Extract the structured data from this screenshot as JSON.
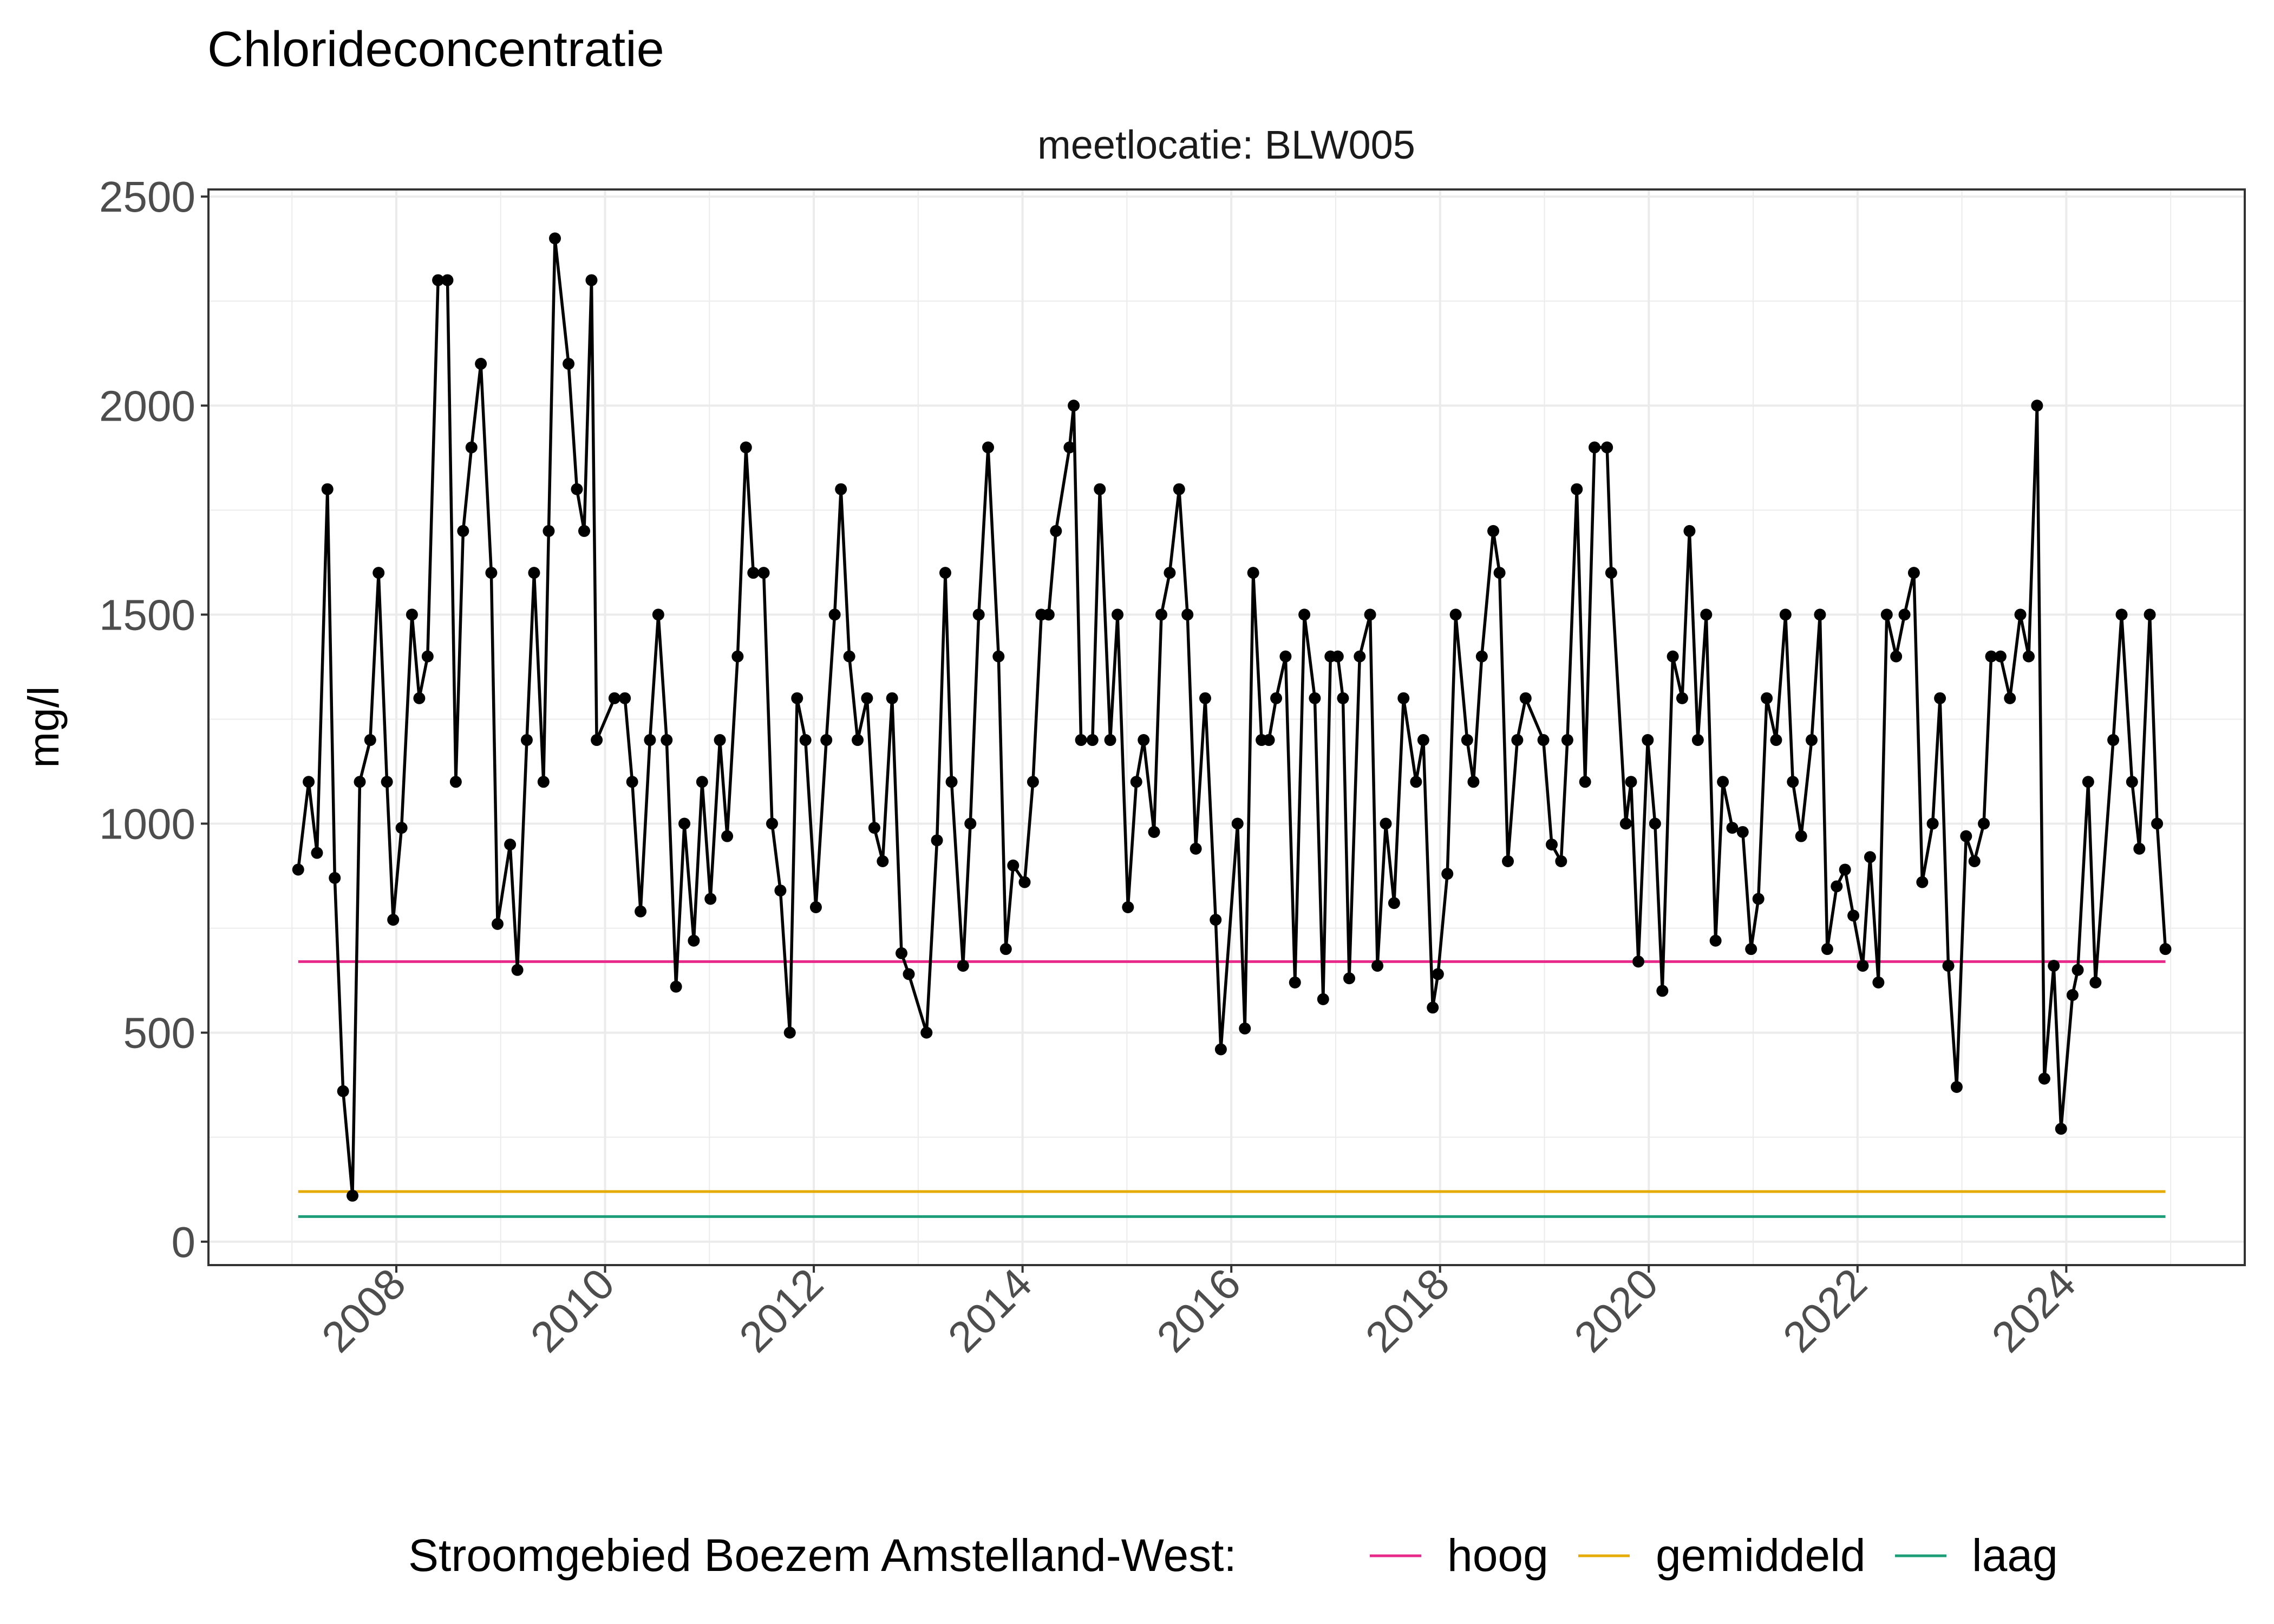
{
  "chart_data": {
    "type": "line",
    "title": "Chlorideconcentratie",
    "facet_label": "meetlocatie: BLW005",
    "xlabel": "",
    "ylabel": "mg/l",
    "xlim": [
      2006.2,
      2025.71
    ],
    "ylim": [
      -56,
      2517
    ],
    "x_ticks": [
      2008,
      2010,
      2012,
      2014,
      2016,
      2018,
      2020,
      2022,
      2024
    ],
    "x_tick_labels": [
      "2008",
      "2010",
      "2012",
      "2014",
      "2016",
      "2018",
      "2020",
      "2022",
      "2024"
    ],
    "y_ticks": [
      0,
      500,
      1000,
      1500,
      2000,
      2500
    ],
    "y_tick_labels": [
      "0",
      "500",
      "1000",
      "1500",
      "2000",
      "2500"
    ],
    "grid": true,
    "legend": {
      "position": "bottom",
      "title": "Stroomgebied Boezem Amstelland-West:",
      "entries": [
        {
          "label": "hoog",
          "color": "#E7298A"
        },
        {
          "label": "gemiddeld",
          "color": "#E6AB02"
        },
        {
          "label": "laag",
          "color": "#1B9E77"
        }
      ]
    },
    "reference_lines": [
      {
        "name": "hoog",
        "value": 670,
        "color": "#E7298A",
        "x_range": [
          2007.06,
          2024.95
        ]
      },
      {
        "name": "gemiddeld",
        "value": 120,
        "color": "#E6AB02",
        "x_range": [
          2007.06,
          2024.95
        ]
      },
      {
        "name": "laag",
        "value": 60,
        "color": "#1B9E77",
        "x_range": [
          2007.06,
          2024.95
        ]
      }
    ],
    "series": [
      {
        "color": "#000000",
        "x": [
          2007.06,
          2007.16,
          2007.24,
          2007.34,
          2007.41,
          2007.49,
          2007.58,
          2007.65,
          2007.75,
          2007.83,
          2007.91,
          2007.97,
          2008.05,
          2008.15,
          2008.22,
          2008.3,
          2008.4,
          2008.49,
          2008.57,
          2008.64,
          2008.72,
          2008.81,
          2008.91,
          2008.97,
          2009.09,
          2009.16,
          2009.25,
          2009.32,
          2009.41,
          2009.46,
          2009.52,
          2009.65,
          2009.73,
          2009.8,
          2009.87,
          2009.92,
          2010.09,
          2010.19,
          2010.26,
          2010.34,
          2010.43,
          2010.51,
          2010.59,
          2010.68,
          2010.76,
          2010.85,
          2010.93,
          2011.01,
          2011.1,
          2011.17,
          2011.27,
          2011.35,
          2011.42,
          2011.52,
          2011.6,
          2011.68,
          2011.77,
          2011.84,
          2011.92,
          2012.02,
          2012.12,
          2012.2,
          2012.26,
          2012.34,
          2012.42,
          2012.51,
          2012.58,
          2012.66,
          2012.75,
          2012.84,
          2012.91,
          2013.08,
          2013.18,
          2013.26,
          2013.32,
          2013.43,
          2013.5,
          2013.58,
          2013.67,
          2013.77,
          2013.84,
          2013.91,
          2014.02,
          2014.1,
          2014.18,
          2014.25,
          2014.32,
          2014.45,
          2014.49,
          2014.56,
          2014.67,
          2014.74,
          2014.84,
          2014.91,
          2015.01,
          2015.09,
          2015.16,
          2015.26,
          2015.33,
          2015.41,
          2015.5,
          2015.58,
          2015.66,
          2015.75,
          2015.85,
          2015.9,
          2016.06,
          2016.13,
          2016.21,
          2016.29,
          2016.36,
          2016.43,
          2016.52,
          2016.61,
          2016.7,
          2016.8,
          2016.88,
          2016.95,
          2017.02,
          2017.07,
          2017.13,
          2017.23,
          2017.33,
          2017.4,
          2017.48,
          2017.56,
          2017.65,
          2017.77,
          2017.84,
          2017.93,
          2017.98,
          2018.07,
          2018.15,
          2018.26,
          2018.32,
          2018.4,
          2018.51,
          2018.57,
          2018.65,
          2018.74,
          2018.82,
          2018.99,
          2019.07,
          2019.16,
          2019.22,
          2019.31,
          2019.39,
          2019.48,
          2019.6,
          2019.64,
          2019.78,
          2019.83,
          2019.9,
          2019.99,
          2020.06,
          2020.13,
          2020.23,
          2020.32,
          2020.39,
          2020.47,
          2020.55,
          2020.64,
          2020.71,
          2020.8,
          2020.9,
          2020.98,
          2021.05,
          2021.13,
          2021.22,
          2021.31,
          2021.38,
          2021.46,
          2021.56,
          2021.64,
          2021.71,
          2021.8,
          2021.88,
          2021.96,
          2022.05,
          2022.12,
          2022.2,
          2022.28,
          2022.37,
          2022.45,
          2022.54,
          2022.62,
          2022.72,
          2022.79,
          2022.87,
          2022.95,
          2023.04,
          2023.12,
          2023.21,
          2023.28,
          2023.37,
          2023.46,
          2023.56,
          2023.64,
          2023.72,
          2023.79,
          2023.88,
          2023.95,
          2024.06,
          2024.11,
          2024.21,
          2024.28,
          2024.45,
          2024.53,
          2024.63,
          2024.7,
          2024.8,
          2024.87,
          2024.95
        ],
        "y": [
          890,
          1100,
          930,
          1800,
          870,
          360,
          110,
          1100,
          1200,
          1600,
          1100,
          770,
          990,
          1500,
          1300,
          1400,
          2300,
          2300,
          1100,
          1700,
          1900,
          2100,
          1600,
          760,
          950,
          650,
          1200,
          1600,
          1100,
          1700,
          2400,
          2100,
          1800,
          1700,
          2300,
          1200,
          1300,
          1300,
          1100,
          790,
          1200,
          1500,
          1200,
          610,
          1000,
          720,
          1100,
          820,
          1200,
          970,
          1400,
          1900,
          1600,
          1600,
          1000,
          840,
          500,
          1300,
          1200,
          800,
          1200,
          1500,
          1800,
          1400,
          1200,
          1300,
          990,
          910,
          1300,
          690,
          640,
          500,
          960,
          1600,
          1100,
          660,
          1000,
          1500,
          1900,
          1400,
          700,
          900,
          860,
          1100,
          1500,
          1500,
          1700,
          1900,
          2000,
          1200,
          1200,
          1800,
          1200,
          1500,
          800,
          1100,
          1200,
          980,
          1500,
          1600,
          1800,
          1500,
          940,
          1300,
          770,
          460,
          1000,
          510,
          1600,
          1200,
          1200,
          1300,
          1400,
          620,
          1500,
          1300,
          580,
          1400,
          1400,
          1300,
          630,
          1400,
          1500,
          660,
          1000,
          810,
          1300,
          1100,
          1200,
          560,
          640,
          880,
          1500,
          1200,
          1100,
          1400,
          1700,
          1600,
          910,
          1200,
          1300,
          1200,
          950,
          910,
          1200,
          1800,
          1100,
          1900,
          1900,
          1600,
          1000,
          1100,
          670,
          1200,
          1000,
          600,
          1400,
          1300,
          1700,
          1200,
          1500,
          720,
          1100,
          990,
          980,
          700,
          820,
          1300,
          1200,
          1500,
          1100,
          970,
          1200,
          1500,
          700,
          850,
          890,
          780,
          660,
          920,
          620,
          1500,
          1400,
          1500,
          1600,
          860,
          1000,
          1300,
          660,
          370,
          970,
          910,
          1000,
          1400,
          1400,
          1300,
          1500,
          1400,
          2000,
          390,
          660,
          270,
          590,
          650,
          1100,
          620,
          1200,
          1500,
          1100,
          940,
          1500,
          1000,
          700
        ]
      }
    ]
  }
}
